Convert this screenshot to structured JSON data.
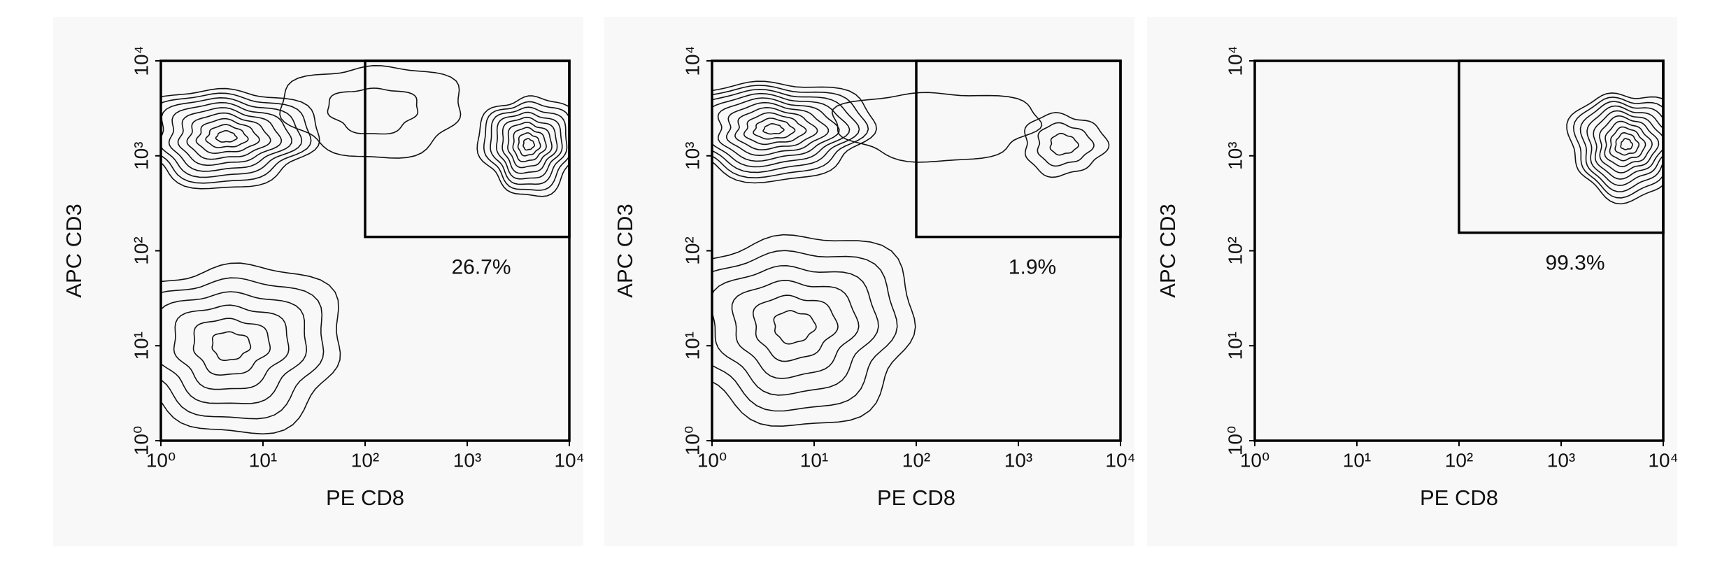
{
  "chart_data": [
    {
      "type": "contour",
      "x_label": "PE CD8",
      "y_label": "APC CD3",
      "log_x": true,
      "log_y": true,
      "xlim": [
        1,
        10000
      ],
      "ylim": [
        1,
        10000
      ],
      "xticks": [
        {
          "value": 1,
          "label": "10⁰"
        },
        {
          "value": 10,
          "label": "10¹"
        },
        {
          "value": 100,
          "label": "10²"
        },
        {
          "value": 1000,
          "label": "10³"
        },
        {
          "value": 10000,
          "label": "10⁴"
        }
      ],
      "yticks": [
        {
          "value": 1,
          "label": "10⁰"
        },
        {
          "value": 10,
          "label": "10¹"
        },
        {
          "value": 100,
          "label": "10²"
        },
        {
          "value": 1000,
          "label": "10³"
        },
        {
          "value": 10000,
          "label": "10⁴"
        }
      ],
      "gate": {
        "x": [
          100,
          10000
        ],
        "y": [
          140,
          10000
        ],
        "label": "26.7%"
      }
    },
    {
      "type": "contour",
      "x_label": "PE CD8",
      "y_label": "APC CD3",
      "log_x": true,
      "log_y": true,
      "xlim": [
        1,
        10000
      ],
      "ylim": [
        1,
        10000
      ],
      "xticks": [
        {
          "value": 1,
          "label": "10⁰"
        },
        {
          "value": 10,
          "label": "10¹"
        },
        {
          "value": 100,
          "label": "10²"
        },
        {
          "value": 1000,
          "label": "10³"
        },
        {
          "value": 10000,
          "label": "10⁴"
        }
      ],
      "yticks": [
        {
          "value": 1,
          "label": "10⁰"
        },
        {
          "value": 10,
          "label": "10¹"
        },
        {
          "value": 100,
          "label": "10²"
        },
        {
          "value": 1000,
          "label": "10³"
        },
        {
          "value": 10000,
          "label": "10⁴"
        }
      ],
      "gate": {
        "x": [
          100,
          10000
        ],
        "y": [
          140,
          10000
        ],
        "label": "1.9%"
      }
    },
    {
      "type": "contour",
      "x_label": "PE CD8",
      "y_label": "APC CD3",
      "log_x": true,
      "log_y": true,
      "xlim": [
        1,
        10000
      ],
      "ylim": [
        1,
        10000
      ],
      "xticks": [
        {
          "value": 1,
          "label": "10⁰"
        },
        {
          "value": 10,
          "label": "10¹"
        },
        {
          "value": 100,
          "label": "10²"
        },
        {
          "value": 1000,
          "label": "10³"
        },
        {
          "value": 10000,
          "label": "10⁴"
        }
      ],
      "yticks": [
        {
          "value": 1,
          "label": "10⁰"
        },
        {
          "value": 10,
          "label": "10¹"
        },
        {
          "value": 100,
          "label": "10²"
        },
        {
          "value": 1000,
          "label": "10³"
        },
        {
          "value": 10000,
          "label": "10⁴"
        }
      ],
      "gate": {
        "x": [
          100,
          10000
        ],
        "y": [
          155,
          10000
        ],
        "label": "99.3%"
      }
    }
  ]
}
